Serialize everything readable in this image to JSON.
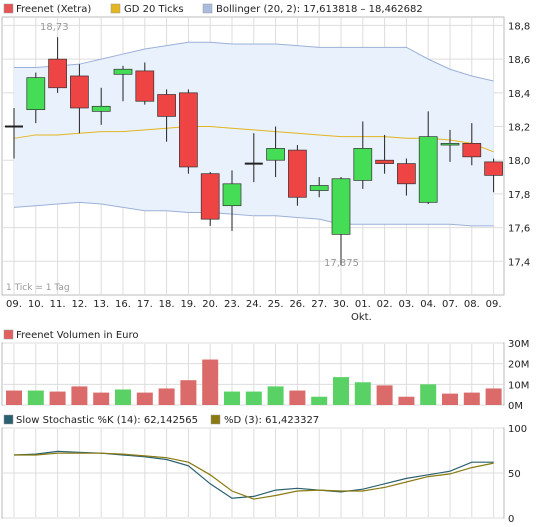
{
  "legend": [
    {
      "label": "Freenet (Xetra)",
      "color": "#e45555"
    },
    {
      "label": "GD 20 Ticks",
      "color": "#e3b520"
    },
    {
      "label": "Bollinger (20, 2): 17,613818 – 18,462682",
      "color": "#a9bcdc"
    }
  ],
  "volume_legend": {
    "label": "Freenet Volumen in Euro",
    "color": "#e06060"
  },
  "stoch_legend": [
    {
      "label": "Slow Stochastic %K (14): 62,142565",
      "color": "#2a6070"
    },
    {
      "label": "%D (3): 61,423327",
      "color": "#8a7a10"
    }
  ],
  "tick_note": "1 Tick = 1 Tag",
  "month_label": "Okt.",
  "annotations": {
    "high": "18,73",
    "low": "17,375"
  },
  "colors": {
    "up": "#44dd55",
    "down": "#ee4444",
    "band_fill": "#e9f1fc",
    "band_line": "#9cb0d8",
    "ma": "#e3b520",
    "k_line": "#2a6070",
    "d_line": "#8a7a10",
    "grid": "#dddddd"
  },
  "chart_data": [
    {
      "type": "candlestick",
      "ylim": [
        17.2,
        18.85
      ],
      "y_ticks": [
        "17,4",
        "17,6",
        "17,8",
        "18,0",
        "18,2",
        "18,4",
        "18,6",
        "18,8"
      ],
      "y_tick_values": [
        17.4,
        17.6,
        17.8,
        18.0,
        18.2,
        18.4,
        18.6,
        18.8
      ],
      "categories": [
        "09.",
        "10.",
        "11.",
        "12.",
        "13.",
        "16.",
        "17.",
        "18.",
        "19.",
        "20.",
        "23.",
        "24.",
        "25.",
        "26.",
        "27.",
        "30.",
        "01.",
        "02.",
        "03.",
        "04.",
        "07.",
        "08.",
        "09."
      ],
      "candles": [
        {
          "o": 18.2,
          "h": 18.31,
          "l": 18.01,
          "c": 18.2
        },
        {
          "o": 18.3,
          "h": 18.52,
          "l": 18.22,
          "c": 18.49
        },
        {
          "o": 18.6,
          "h": 18.73,
          "l": 18.4,
          "c": 18.43
        },
        {
          "o": 18.5,
          "h": 18.57,
          "l": 18.16,
          "c": 18.31
        },
        {
          "o": 18.29,
          "h": 18.43,
          "l": 18.21,
          "c": 18.32
        },
        {
          "o": 18.51,
          "h": 18.56,
          "l": 18.35,
          "c": 18.54
        },
        {
          "o": 18.53,
          "h": 18.58,
          "l": 18.33,
          "c": 18.35
        },
        {
          "o": 18.39,
          "h": 18.42,
          "l": 18.11,
          "c": 18.26
        },
        {
          "o": 18.4,
          "h": 18.42,
          "l": 17.92,
          "c": 17.96
        },
        {
          "o": 17.92,
          "h": 17.93,
          "l": 17.61,
          "c": 17.65
        },
        {
          "o": 17.73,
          "h": 17.94,
          "l": 17.58,
          "c": 17.86
        },
        {
          "o": 17.98,
          "h": 18.16,
          "l": 17.87,
          "c": 17.98
        },
        {
          "o": 18.0,
          "h": 18.2,
          "l": 17.9,
          "c": 18.07
        },
        {
          "o": 18.06,
          "h": 18.09,
          "l": 17.73,
          "c": 17.78
        },
        {
          "o": 17.82,
          "h": 17.9,
          "l": 17.78,
          "c": 17.85
        },
        {
          "o": 17.56,
          "h": 17.9,
          "l": 17.375,
          "c": 17.89
        },
        {
          "o": 17.88,
          "h": 18.23,
          "l": 17.83,
          "c": 18.07
        },
        {
          "o": 18.0,
          "h": 18.15,
          "l": 17.92,
          "c": 17.98
        },
        {
          "o": 17.98,
          "h": 18.01,
          "l": 17.79,
          "c": 17.86
        },
        {
          "o": 17.75,
          "h": 18.29,
          "l": 17.74,
          "c": 18.14
        },
        {
          "o": 18.09,
          "h": 18.18,
          "l": 17.99,
          "c": 18.1
        },
        {
          "o": 18.1,
          "h": 18.22,
          "l": 17.97,
          "c": 18.02
        },
        {
          "o": 17.99,
          "h": 18.01,
          "l": 17.81,
          "c": 17.91
        }
      ],
      "ma_20": [
        18.13,
        18.15,
        18.15,
        18.16,
        18.17,
        18.17,
        18.18,
        18.19,
        18.2,
        18.2,
        18.19,
        18.18,
        18.17,
        18.16,
        18.15,
        18.14,
        18.14,
        18.14,
        18.13,
        18.13,
        18.12,
        18.1,
        18.05
      ],
      "bollinger_upper": [
        18.55,
        18.55,
        18.56,
        18.57,
        18.6,
        18.63,
        18.66,
        18.68,
        18.7,
        18.7,
        18.69,
        18.69,
        18.69,
        18.68,
        18.67,
        18.67,
        18.67,
        18.67,
        18.67,
        18.6,
        18.54,
        18.5,
        18.47
      ],
      "bollinger_lower": [
        17.72,
        17.73,
        17.74,
        17.75,
        17.74,
        17.72,
        17.7,
        17.7,
        17.69,
        17.69,
        17.68,
        17.67,
        17.67,
        17.66,
        17.65,
        17.62,
        17.62,
        17.62,
        17.62,
        17.62,
        17.62,
        17.61,
        17.61
      ]
    },
    {
      "type": "bar",
      "title": "Freenet Volumen in Euro",
      "ylim": [
        0,
        30
      ],
      "y_ticks": [
        "0M",
        "10M",
        "20M",
        "30M"
      ],
      "y_tick_values": [
        0,
        10,
        20,
        30
      ],
      "unit": "M EUR",
      "values": [
        7,
        7,
        6.5,
        9,
        6,
        7.5,
        6,
        8,
        12,
        22,
        6.5,
        6.5,
        9,
        7,
        4,
        13.5,
        11,
        9.5,
        4,
        10,
        5.5,
        6,
        8
      ],
      "colors": [
        "r",
        "g",
        "r",
        "r",
        "r",
        "g",
        "r",
        "r",
        "r",
        "r",
        "g",
        "g",
        "g",
        "r",
        "g",
        "g",
        "g",
        "r",
        "r",
        "g",
        "r",
        "r",
        "r"
      ]
    },
    {
      "type": "line",
      "ylim": [
        0,
        100
      ],
      "y_ticks": [
        "0",
        "50",
        "100"
      ],
      "y_tick_values": [
        0,
        50,
        100
      ],
      "series": [
        {
          "name": "Slow Stochastic %K (14): 62,142565",
          "values": [
            70,
            71,
            74,
            73,
            72,
            70,
            68,
            65,
            58,
            38,
            22,
            24,
            31,
            33,
            31,
            29,
            32,
            38,
            44,
            48,
            52,
            62,
            62
          ]
        },
        {
          "name": "%D (3): 61,423327",
          "values": [
            70,
            70,
            72,
            72,
            72,
            71,
            69,
            67,
            62,
            48,
            30,
            21,
            25,
            30,
            31,
            30,
            30,
            34,
            40,
            46,
            49,
            56,
            61
          ]
        }
      ]
    }
  ]
}
